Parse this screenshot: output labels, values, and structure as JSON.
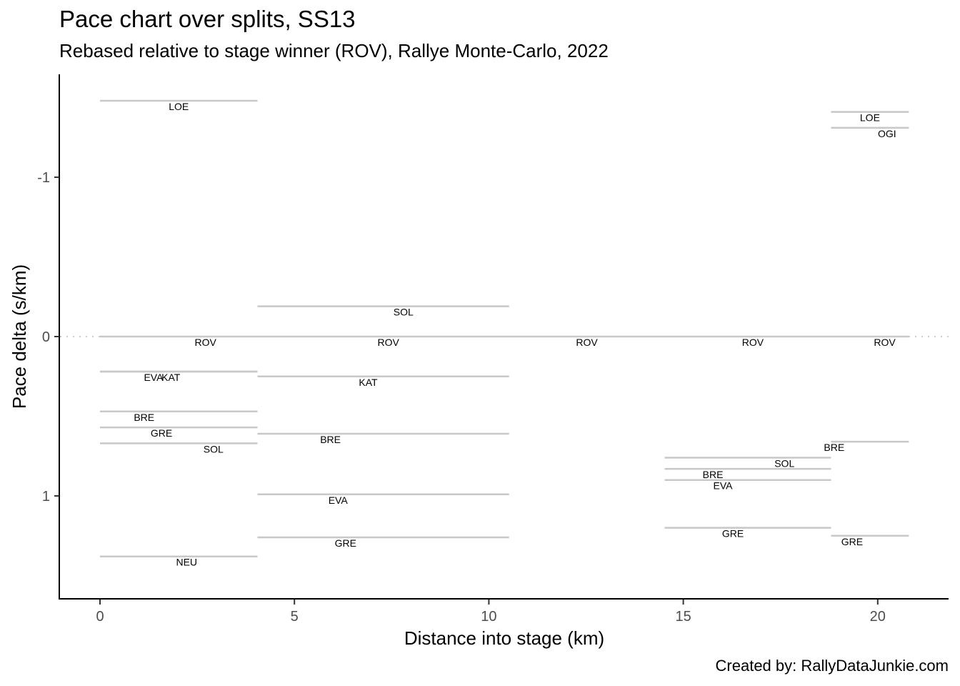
{
  "title": "Pace chart over splits, SS13",
  "subtitle": "Rebased relative to stage winner (ROV), Rallye Monte-Carlo, 2022",
  "caption": "Created by: RallyDataJunkie.com",
  "chart_data": {
    "type": "line",
    "title": "Pace chart over splits, SS13",
    "subtitle": "Rebased relative to stage winner (ROV), Rallye Monte-Carlo, 2022",
    "xlabel": "Distance into stage (km)",
    "ylabel": "Pace delta (s/km)",
    "xlim": [
      -1.0,
      21.8
    ],
    "ylim": [
      -1.65,
      1.65
    ],
    "y_reversed": true,
    "x_ticks": [
      0,
      5,
      10,
      15,
      20
    ],
    "x_tick_labels": [
      "0",
      "5",
      "10",
      "15",
      "20"
    ],
    "y_ticks": [
      -1,
      0,
      1
    ],
    "y_tick_labels": [
      "-1",
      "0",
      "1"
    ],
    "reference_line": 0,
    "grid": false,
    "legend": "none",
    "segments": [
      {
        "label": "LOE",
        "x0": 0,
        "x1": 4.05,
        "y": -1.48
      },
      {
        "label": "ROV",
        "x0": 0,
        "x1": 4.05,
        "y": 0
      },
      {
        "label": "EVA",
        "x0": 0,
        "x1": 4.05,
        "y": 0.22
      },
      {
        "label": "KAT",
        "x0": 0,
        "x1": 4.05,
        "y": 0.22
      },
      {
        "label": "BRE",
        "x0": 0,
        "x1": 4.05,
        "y": 0.47
      },
      {
        "label": "GRE",
        "x0": 0,
        "x1": 4.05,
        "y": 0.57
      },
      {
        "label": "SOL",
        "x0": 0,
        "x1": 4.05,
        "y": 0.67
      },
      {
        "label": "NEU",
        "x0": 0,
        "x1": 4.05,
        "y": 1.38
      },
      {
        "label": "SOL",
        "x0": 4.05,
        "x1": 10.52,
        "y": -0.19
      },
      {
        "label": "ROV",
        "x0": 4.05,
        "x1": 10.52,
        "y": 0
      },
      {
        "label": "KAT",
        "x0": 4.05,
        "x1": 10.52,
        "y": 0.25
      },
      {
        "label": "BRE",
        "x0": 4.05,
        "x1": 10.52,
        "y": 0.61
      },
      {
        "label": "EVA",
        "x0": 4.05,
        "x1": 10.52,
        "y": 0.99
      },
      {
        "label": "GRE",
        "x0": 4.05,
        "x1": 10.52,
        "y": 1.26
      },
      {
        "label": "ROV",
        "x0": 10.52,
        "x1": 14.52,
        "y": 0
      },
      {
        "label": "ROV",
        "x0": 14.52,
        "x1": 18.8,
        "y": 0
      },
      {
        "label": "SOL",
        "x0": 14.52,
        "x1": 18.8,
        "y": 0.76
      },
      {
        "label": "BRE",
        "x0": 14.52,
        "x1": 18.8,
        "y": 0.83
      },
      {
        "label": "EVA",
        "x0": 14.52,
        "x1": 18.8,
        "y": 0.9
      },
      {
        "label": "GRE",
        "x0": 14.52,
        "x1": 18.8,
        "y": 1.2
      },
      {
        "label": "LOE",
        "x0": 18.8,
        "x1": 20.8,
        "y": -1.41
      },
      {
        "label": "OGI",
        "x0": 18.8,
        "x1": 20.8,
        "y": -1.31
      },
      {
        "label": "ROV",
        "x0": 18.8,
        "x1": 20.8,
        "y": 0
      },
      {
        "label": "BRE",
        "x0": 18.8,
        "x1": 20.8,
        "y": 0.66
      },
      {
        "label": "GRE",
        "x0": 18.8,
        "x1": 20.8,
        "y": 1.25
      }
    ]
  }
}
